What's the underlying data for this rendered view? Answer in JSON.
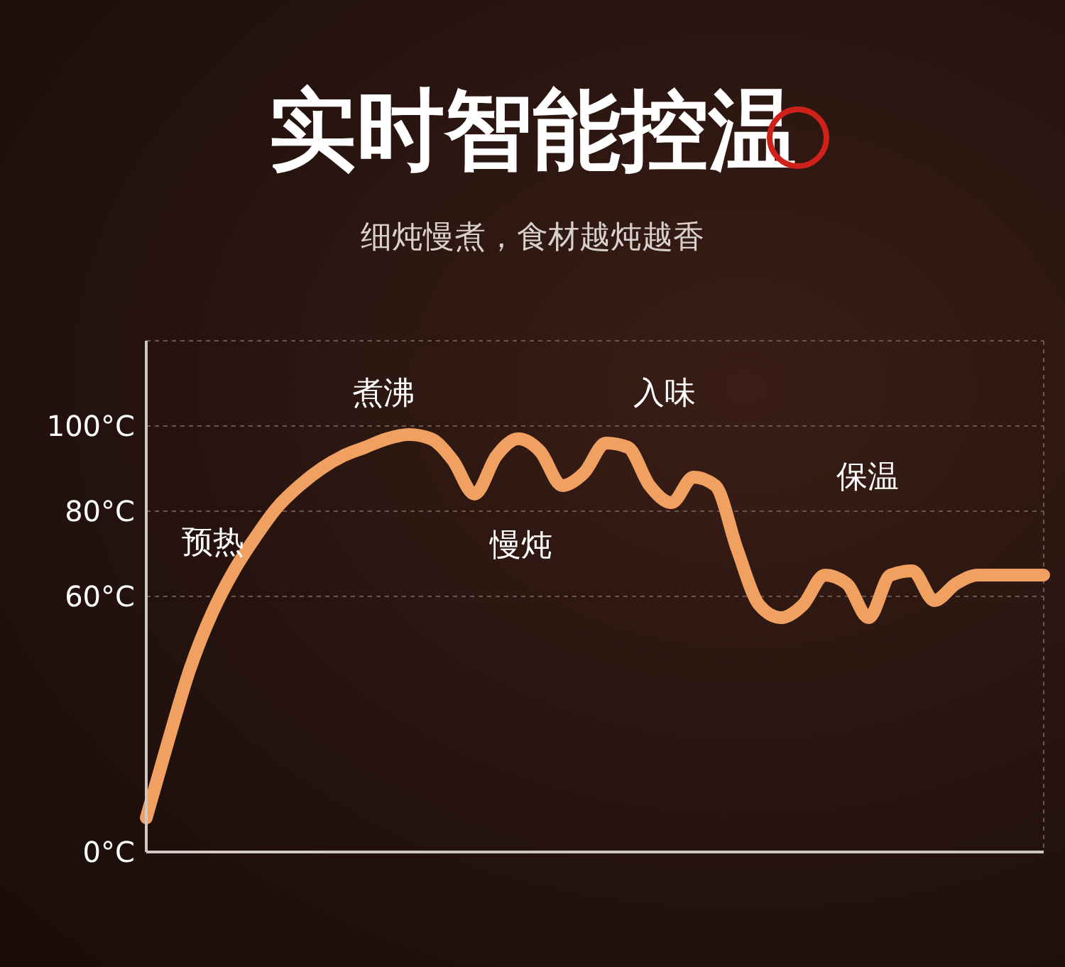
{
  "chart_data": {
    "type": "line",
    "title": "实时智能控温",
    "subtitle": "细炖慢煮，食材越炖越香",
    "categories": [
      null,
      null,
      null,
      null,
      null,
      null,
      null,
      null,
      null,
      null,
      null,
      null,
      null,
      null,
      null,
      null,
      null,
      null,
      null,
      null,
      null,
      null,
      null,
      null,
      null,
      null,
      null,
      null,
      null,
      null,
      null,
      null,
      null,
      null,
      null,
      null,
      null,
      null,
      null,
      null,
      null,
      null
    ],
    "series": [
      {
        "color": "#f0a060",
        "values": [
          8,
          26,
          43,
          56,
          66,
          74,
          81,
          86,
          90,
          93,
          95,
          97,
          98,
          97,
          92,
          84,
          93,
          97,
          94,
          86,
          89,
          96,
          95,
          86,
          82,
          88,
          86,
          71,
          58,
          55,
          58,
          65,
          63,
          55,
          65,
          66,
          59,
          63,
          65,
          65,
          65,
          65
        ]
      }
    ],
    "ylim": [
      0,
      120
    ],
    "yticks": [
      {
        "value": 0,
        "label": "0°C"
      },
      {
        "value": 60,
        "label": "60°C"
      },
      {
        "value": 80,
        "label": "80°C"
      },
      {
        "value": 100,
        "label": "100°C"
      }
    ],
    "tick_labels": "y",
    "grid": true,
    "marker": "none",
    "line_style": "solid",
    "annotations": [
      "预热",
      "煮沸",
      "慢炖",
      "入味",
      "保温"
    ]
  }
}
